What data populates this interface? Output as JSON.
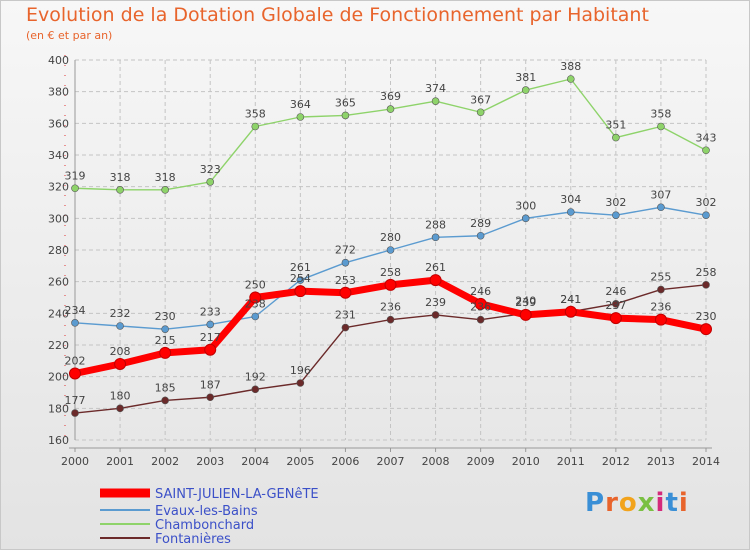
{
  "chart_data": {
    "type": "line",
    "title": "Evolution de la Dotation Globale de Fonctionnement par Habitant",
    "subtitle": "(en € et par an)",
    "x": [
      "2000",
      "2001",
      "2002",
      "2003",
      "2004",
      "2005",
      "2006",
      "2007",
      "2008",
      "2009",
      "2010",
      "2011",
      "2012",
      "2013",
      "2014"
    ],
    "ylim": [
      160,
      400
    ],
    "yticks": [
      160,
      180,
      200,
      220,
      240,
      260,
      280,
      300,
      320,
      340,
      360,
      380,
      400
    ],
    "grid": "horizontal dashed",
    "legend_position": "bottom-left",
    "series": [
      {
        "name": "SAINT-JULIEN-LA-GENêTE",
        "color": "#ff0000",
        "values": [
          202,
          208,
          215,
          217,
          250,
          254,
          253,
          258,
          261,
          246,
          239,
          241,
          237,
          236,
          230
        ]
      },
      {
        "name": "Evaux-les-Bains",
        "color": "#5b9bd0",
        "values": [
          234,
          232,
          230,
          233,
          238,
          261,
          272,
          280,
          288,
          289,
          300,
          304,
          302,
          307,
          302
        ]
      },
      {
        "name": "Chambonchard",
        "color": "#8ed36a",
        "values": [
          319,
          318,
          318,
          323,
          358,
          364,
          365,
          369,
          374,
          367,
          381,
          388,
          351,
          358,
          343
        ]
      },
      {
        "name": "Fontanières",
        "color": "#6b2a2a",
        "values": [
          177,
          180,
          185,
          187,
          192,
          196,
          231,
          236,
          239,
          236,
          240,
          241,
          246,
          255,
          258
        ]
      }
    ]
  },
  "logo": {
    "text": "Proxiti"
  }
}
